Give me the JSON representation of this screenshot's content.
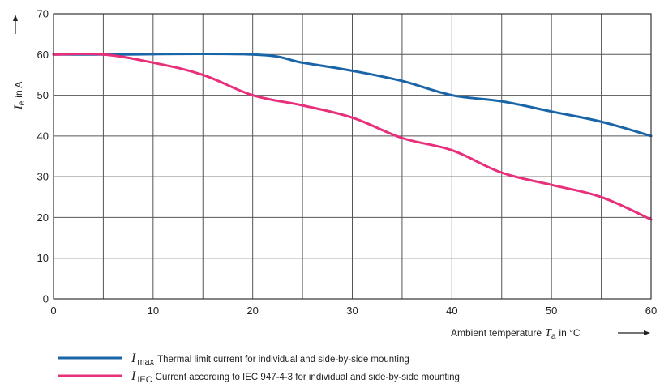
{
  "chart_data": {
    "type": "line",
    "xlabel": {
      "text": "Ambient temperature",
      "symbol": "T",
      "subscript": "a",
      "unit": "in °C"
    },
    "ylabel": {
      "symbol": "I",
      "subscript": "e",
      "unit": "in A"
    },
    "xlim": [
      0,
      60
    ],
    "ylim": [
      0,
      70
    ],
    "xticks": [
      0,
      10,
      20,
      30,
      40,
      50,
      60
    ],
    "yticks": [
      0,
      10,
      20,
      30,
      40,
      50,
      60,
      70
    ],
    "x_gridlines": [
      0,
      5,
      10,
      15,
      20,
      25,
      30,
      35,
      40,
      45,
      50,
      55,
      60
    ],
    "grid": true,
    "legend_position": "bottom",
    "series": [
      {
        "symbol": "I",
        "subscript": "max",
        "label": "Thermal limit current for individual and side-by-side mounting",
        "color": "#1a64a8",
        "x": [
          0,
          5,
          20,
          25,
          30,
          35,
          40,
          45,
          50,
          55,
          60
        ],
        "y": [
          60,
          60,
          60,
          58,
          56,
          53.5,
          50,
          48.5,
          46,
          43.5,
          40
        ]
      },
      {
        "symbol": "I",
        "subscript": "IEC",
        "label": "Current according to IEC 947-4-3 for individual and side-by-side mounting",
        "color": "#e8307a",
        "x": [
          0,
          5,
          10,
          15,
          20,
          25,
          30,
          35,
          40,
          45,
          50,
          55,
          60
        ],
        "y": [
          60,
          60,
          58,
          55,
          50,
          47.5,
          44.5,
          39.5,
          36.5,
          31,
          28,
          25,
          19.5
        ]
      }
    ]
  }
}
